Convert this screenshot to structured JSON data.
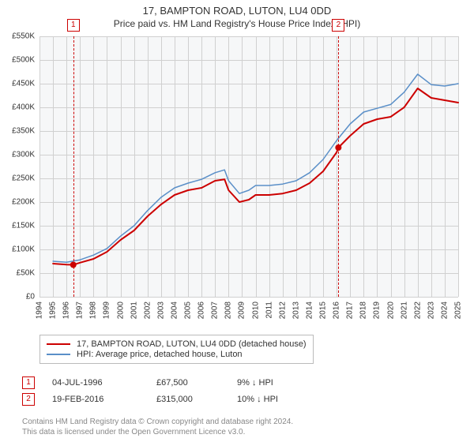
{
  "title_line1": "17, BAMPTON ROAD, LUTON, LU4 0DD",
  "title_line2": "Price paid vs. HM Land Registry's House Price Index (HPI)",
  "title_fontsize": 13,
  "subtitle_fontsize": 12,
  "colors": {
    "series_property": "#cc0000",
    "series_hpi": "#5a8fc8",
    "grid": "#d0d0d0",
    "plot_bg": "#f6f7f8",
    "ref_line": "#cc0000",
    "text": "#333333",
    "attrib": "#888888"
  },
  "chart": {
    "type": "line",
    "x_year_min": 1994,
    "x_year_max": 2025,
    "y_min": 0,
    "y_max": 550,
    "y_unit": "K",
    "y_prefix": "£",
    "y_tick_step": 50,
    "x_tick_step": 1,
    "line_width_property": 2.0,
    "line_width_hpi": 1.5,
    "marker_radius": 4,
    "marker_color": "#cc0000"
  },
  "y_ticks": [
    "£0",
    "£50K",
    "£100K",
    "£150K",
    "£200K",
    "£250K",
    "£300K",
    "£350K",
    "£400K",
    "£450K",
    "£500K",
    "£550K"
  ],
  "x_ticks": [
    "1994",
    "1995",
    "1996",
    "1997",
    "1998",
    "1999",
    "2000",
    "2001",
    "2002",
    "2003",
    "2004",
    "2005",
    "2006",
    "2007",
    "2008",
    "2009",
    "2010",
    "2011",
    "2012",
    "2013",
    "2014",
    "2015",
    "2016",
    "2017",
    "2018",
    "2019",
    "2020",
    "2021",
    "2022",
    "2023",
    "2024",
    "2025"
  ],
  "series_property": {
    "label": "17, BAMPTON ROAD, LUTON, LU4 0DD (detached house)",
    "years": [
      1995,
      1996,
      1996.5,
      1997,
      1998,
      1999,
      2000,
      2001,
      2002,
      2003,
      2004,
      2005,
      2006,
      2007,
      2007.7,
      2008,
      2008.8,
      2009.5,
      2010,
      2011,
      2012,
      2013,
      2014,
      2015,
      2016,
      2016.13,
      2017,
      2018,
      2019,
      2020,
      2021,
      2022,
      2023,
      2024,
      2025
    ],
    "values": [
      70,
      68,
      67.5,
      72,
      80,
      95,
      120,
      140,
      170,
      195,
      215,
      225,
      230,
      245,
      248,
      225,
      200,
      205,
      215,
      215,
      218,
      225,
      240,
      265,
      305,
      315,
      340,
      365,
      375,
      380,
      400,
      440,
      420,
      415,
      410
    ]
  },
  "series_hpi": {
    "label": "HPI: Average price, detached house, Luton",
    "years": [
      1995,
      1996,
      1997,
      1998,
      1999,
      2000,
      2001,
      2002,
      2003,
      2004,
      2005,
      2006,
      2007,
      2007.7,
      2008,
      2008.8,
      2009.5,
      2010,
      2011,
      2012,
      2013,
      2014,
      2015,
      2016,
      2017,
      2018,
      2019,
      2020,
      2021,
      2022,
      2023,
      2024,
      2025
    ],
    "values": [
      75,
      73,
      78,
      88,
      102,
      128,
      150,
      182,
      210,
      230,
      240,
      248,
      262,
      268,
      245,
      218,
      225,
      235,
      235,
      238,
      245,
      262,
      290,
      330,
      365,
      390,
      398,
      406,
      432,
      470,
      448,
      445,
      450
    ]
  },
  "reference_lines": [
    {
      "index": "1",
      "year": 1996.5
    },
    {
      "index": "2",
      "year": 2016.13
    }
  ],
  "sale_markers": [
    {
      "year": 1996.5,
      "value": 67.5
    },
    {
      "year": 2016.13,
      "value": 315
    }
  ],
  "legend": {
    "row1_label": "17, BAMPTON ROAD, LUTON, LU4 0DD (detached house)",
    "row2_label": "HPI: Average price, detached house, Luton"
  },
  "datapoints": [
    {
      "index": "1",
      "date": "04-JUL-1996",
      "price": "£67,500",
      "hpi": "9% ↓ HPI"
    },
    {
      "index": "2",
      "date": "19-FEB-2016",
      "price": "£315,000",
      "hpi": "10% ↓ HPI"
    }
  ],
  "attribution": {
    "line1": "Contains HM Land Registry data © Crown copyright and database right 2024.",
    "line2": "This data is licensed under the Open Government Licence v3.0."
  }
}
